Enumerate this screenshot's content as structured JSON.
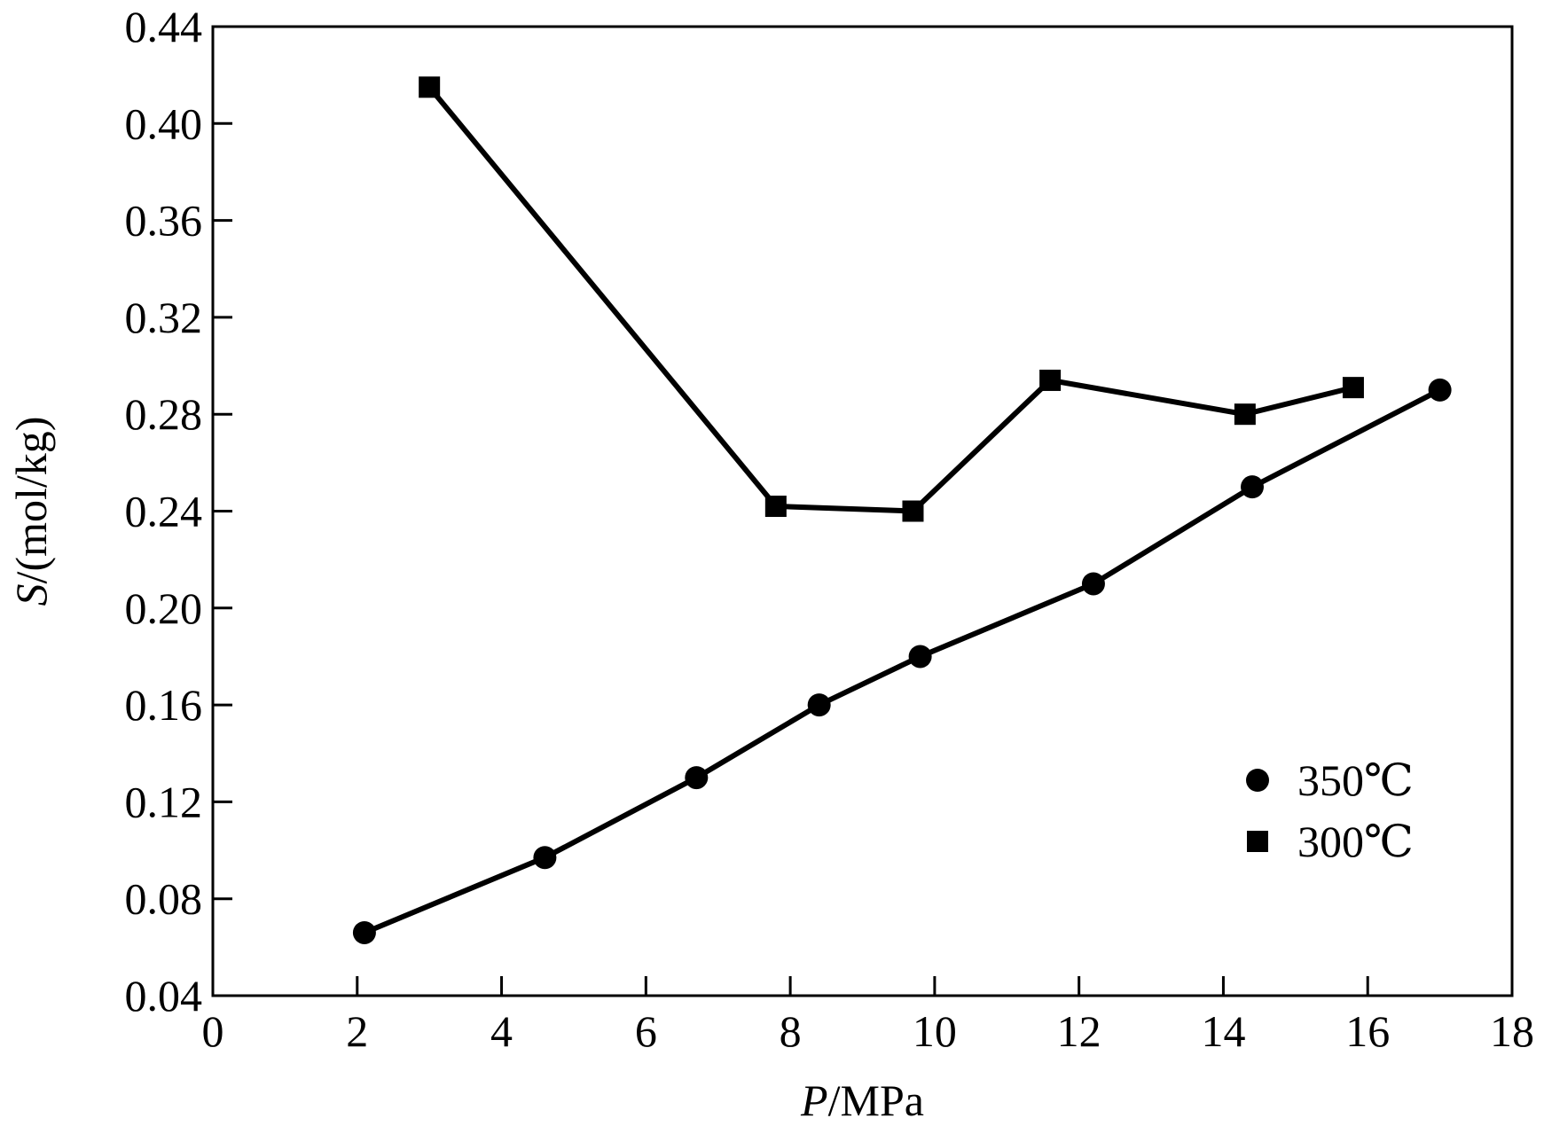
{
  "chart_data": {
    "type": "line",
    "xlabel": {
      "var": "P",
      "unit": "/MPa"
    },
    "ylabel": {
      "var": "S",
      "unit": "/(mol/kg)"
    },
    "xlim": [
      0,
      18
    ],
    "ylim": [
      0.04,
      0.44
    ],
    "xticks": [
      0,
      2,
      4,
      6,
      8,
      10,
      12,
      14,
      16,
      18
    ],
    "yticks": [
      "0.04",
      "0.08",
      "0.12",
      "0.16",
      "0.20",
      "0.24",
      "0.28",
      "0.32",
      "0.36",
      "0.40",
      "0.44"
    ],
    "grid": false,
    "legend_position": "bottom-right",
    "series": [
      {
        "name": "350℃",
        "marker": "circle",
        "color": "#000000",
        "x": [
          2.1,
          4.6,
          6.7,
          8.4,
          9.8,
          12.2,
          14.4,
          17.0
        ],
        "y": [
          0.066,
          0.097,
          0.13,
          0.16,
          0.18,
          0.21,
          0.25,
          0.29
        ]
      },
      {
        "name": "300℃",
        "marker": "square",
        "color": "#000000",
        "x": [
          3.0,
          7.8,
          9.7,
          11.6,
          14.3,
          15.8
        ],
        "y": [
          0.415,
          0.242,
          0.24,
          0.294,
          0.28,
          0.291
        ]
      }
    ]
  }
}
